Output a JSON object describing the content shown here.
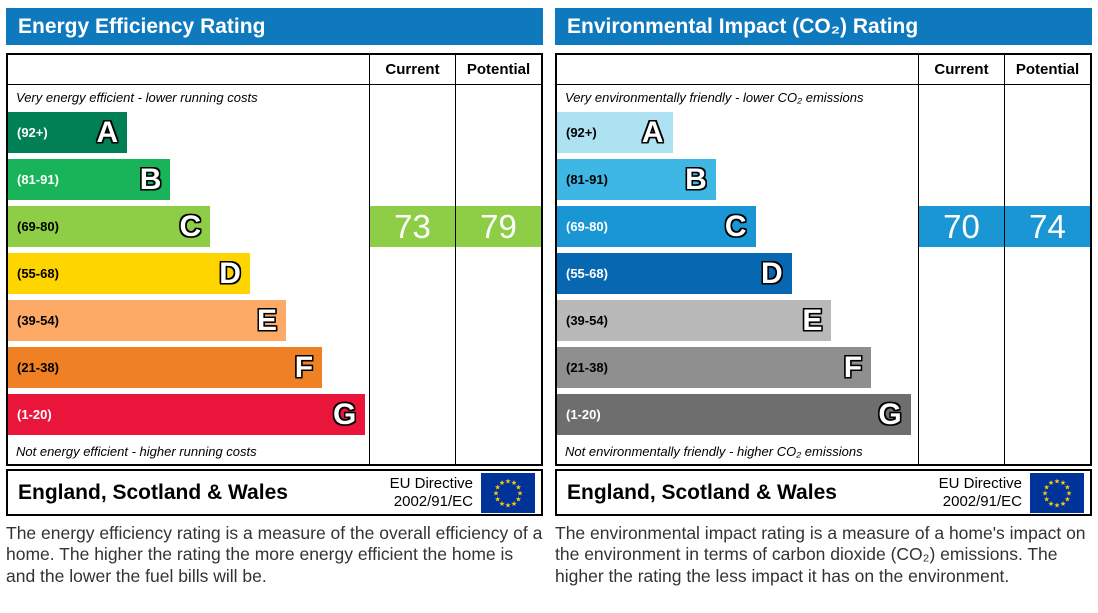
{
  "theme": {
    "title_bg": "#0f79bd",
    "title_text": "#ffffff",
    "border": "#000000",
    "flag_blue": "#003399",
    "flag_star": "#ffcc00"
  },
  "chart_data": [
    {
      "type": "bar",
      "title": "Energy Efficiency Rating",
      "columns": [
        "Current",
        "Potential"
      ],
      "top_note": "Very energy efficient - lower running costs",
      "bottom_note": "Not energy efficient - higher running costs",
      "categories": [
        "A",
        "B",
        "C",
        "D",
        "E",
        "F",
        "G"
      ],
      "bands": [
        {
          "range": "(92+)",
          "letter": "A",
          "color": "#008054",
          "width_pct": 33,
          "label_color": "#ffffff"
        },
        {
          "range": "(81-91)",
          "letter": "B",
          "color": "#19b459",
          "width_pct": 45,
          "label_color": "#ffffff"
        },
        {
          "range": "(69-80)",
          "letter": "C",
          "color": "#8dce46",
          "width_pct": 56,
          "label_color": "#000000"
        },
        {
          "range": "(55-68)",
          "letter": "D",
          "color": "#ffd500",
          "width_pct": 67,
          "label_color": "#000000"
        },
        {
          "range": "(39-54)",
          "letter": "E",
          "color": "#fcaa65",
          "width_pct": 77,
          "label_color": "#000000"
        },
        {
          "range": "(21-38)",
          "letter": "F",
          "color": "#ef8023",
          "width_pct": 87,
          "label_color": "#000000"
        },
        {
          "range": "(1-20)",
          "letter": "G",
          "color": "#e9153b",
          "width_pct": 99,
          "label_color": "#ffffff"
        }
      ],
      "current": {
        "value": 73,
        "band": "C",
        "color": "#8dce46"
      },
      "potential": {
        "value": 79,
        "band": "C",
        "color": "#8dce46"
      },
      "footer": {
        "region": "England, Scotland & Wales",
        "directive_line1": "EU Directive",
        "directive_line2": "2002/91/EC"
      },
      "caption": "The energy efficiency rating is a measure of the overall efficiency of a home. The higher the rating the more energy efficient the home is and the lower the fuel bills will be."
    },
    {
      "type": "bar",
      "title": "Environmental Impact (CO₂) Rating",
      "columns": [
        "Current",
        "Potential"
      ],
      "top_note": "Very environmentally friendly - lower CO₂ emissions",
      "bottom_note": "Not environmentally friendly - higher CO₂ emissions",
      "categories": [
        "A",
        "B",
        "C",
        "D",
        "E",
        "F",
        "G"
      ],
      "bands": [
        {
          "range": "(92+)",
          "letter": "A",
          "color": "#aee2f2",
          "width_pct": 32,
          "label_color": "#000000"
        },
        {
          "range": "(81-91)",
          "letter": "B",
          "color": "#3fb7e4",
          "width_pct": 44,
          "label_color": "#000000"
        },
        {
          "range": "(69-80)",
          "letter": "C",
          "color": "#1a96d5",
          "width_pct": 55,
          "label_color": "#ffffff"
        },
        {
          "range": "(55-68)",
          "letter": "D",
          "color": "#0867b1",
          "width_pct": 65,
          "label_color": "#ffffff"
        },
        {
          "range": "(39-54)",
          "letter": "E",
          "color": "#b9b9b9",
          "width_pct": 76,
          "label_color": "#000000"
        },
        {
          "range": "(21-38)",
          "letter": "F",
          "color": "#8f8f8f",
          "width_pct": 87,
          "label_color": "#000000"
        },
        {
          "range": "(1-20)",
          "letter": "G",
          "color": "#6e6e6e",
          "width_pct": 98,
          "label_color": "#ffffff"
        }
      ],
      "current": {
        "value": 70,
        "band": "C",
        "color": "#1a96d5"
      },
      "potential": {
        "value": 74,
        "band": "C",
        "color": "#1a96d5"
      },
      "footer": {
        "region": "England, Scotland & Wales",
        "directive_line1": "EU Directive",
        "directive_line2": "2002/91/EC"
      },
      "caption": "The environmental impact rating is a measure of a home's impact on the environment in terms of carbon dioxide (CO₂) emissions. The higher the rating the less impact it has on the environment."
    }
  ]
}
